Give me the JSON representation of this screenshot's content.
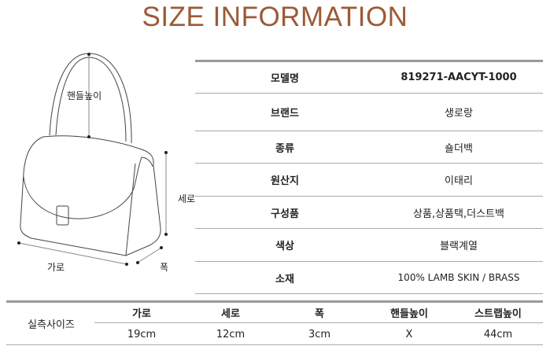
{
  "title": "SIZE INFORMATION",
  "diagram_labels": {
    "handle_height": "핸들높이",
    "height": "세로",
    "width": "가로",
    "depth": "폭"
  },
  "spec": [
    {
      "label": "모델명",
      "value": "819271-AACYT-1000"
    },
    {
      "label": "브랜드",
      "value": "생로랑"
    },
    {
      "label": "종류",
      "value": "숄더백"
    },
    {
      "label": "원산지",
      "value": "이태리"
    },
    {
      "label": "구성품",
      "value": "상품,상품택,더스트백"
    },
    {
      "label": "색상",
      "value": "블랙계열"
    },
    {
      "label": "소재",
      "value": "100% LAMB SKIN / BRASS"
    }
  ],
  "size": {
    "row_label": "실측사이즈",
    "headers": [
      "가로",
      "세로",
      "폭",
      "핸들높이",
      "스트랩높이"
    ],
    "values": [
      "19cm",
      "12cm",
      "3cm",
      "X",
      "44cm"
    ]
  },
  "colors": {
    "title": "#9c5a37"
  }
}
